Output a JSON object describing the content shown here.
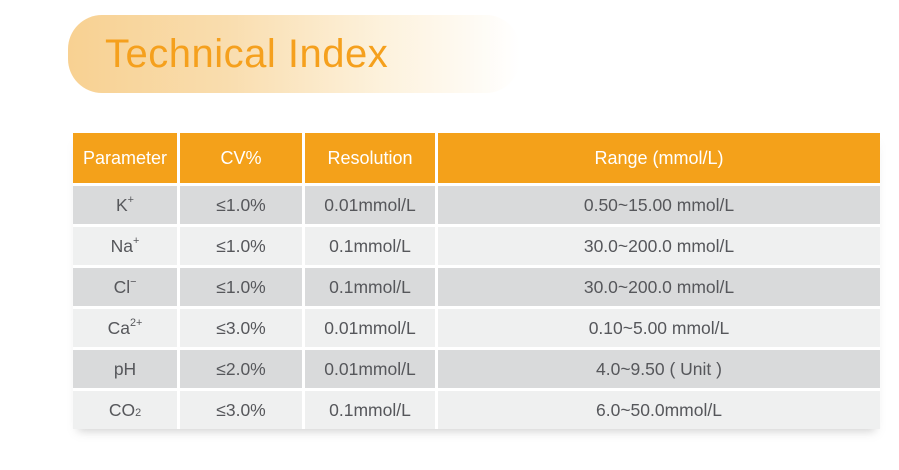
{
  "header": {
    "title": "Technical Index",
    "accent_color": "#f5a01d",
    "banner_gradient_start": "#f8d192",
    "header_bar_color": "#f4a11a",
    "row_dark_color": "#d9dadb",
    "row_light_color": "#eff0f0"
  },
  "table": {
    "columns": [
      "Parameter",
      "CV%",
      "Resolution",
      "Range (mmol/L)"
    ],
    "rows": [
      {
        "param": {
          "base": "K",
          "sup": "+"
        },
        "cv": "≤1.0%",
        "resolution": "0.01mmol/L",
        "range": "0.50~15.00 mmol/L"
      },
      {
        "param": {
          "base": "Na",
          "sup": "+"
        },
        "cv": "≤1.0%",
        "resolution": "0.1mmol/L",
        "range": "30.0~200.0 mmol/L"
      },
      {
        "param": {
          "base": "Cl",
          "sup": "−"
        },
        "cv": "≤1.0%",
        "resolution": "0.1mmol/L",
        "range": "30.0~200.0 mmol/L"
      },
      {
        "param": {
          "base": "Ca",
          "sup": "2+"
        },
        "cv": "≤3.0%",
        "resolution": "0.01mmol/L",
        "range": "0.10~5.00 mmol/L"
      },
      {
        "param": {
          "base": "pH"
        },
        "cv": "≤2.0%",
        "resolution": "0.01mmol/L",
        "range": "4.0~9.50 ( Unit )"
      },
      {
        "param": {
          "base": "CO",
          "sub": "2"
        },
        "cv": "≤3.0%",
        "resolution": "0.1mmol/L",
        "range": "6.0~50.0mmol/L"
      }
    ]
  }
}
